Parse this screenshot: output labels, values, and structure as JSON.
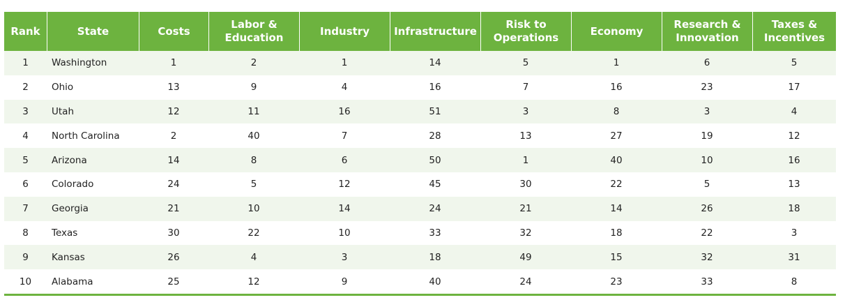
{
  "table": {
    "headers": [
      [
        "Rank"
      ],
      [
        "State"
      ],
      [
        "Costs"
      ],
      [
        "Labor &",
        "Education"
      ],
      [
        "Industry"
      ],
      [
        "Infrastructure"
      ],
      [
        "Risk to",
        "Operations"
      ],
      [
        "Economy"
      ],
      [
        "Research &",
        "Innovation"
      ],
      [
        "Taxes &",
        "Incentives"
      ]
    ],
    "rows": [
      [
        "1",
        "Washington",
        "1",
        "2",
        "1",
        "14",
        "5",
        "1",
        "6",
        "5"
      ],
      [
        "2",
        "Ohio",
        "13",
        "9",
        "4",
        "16",
        "7",
        "16",
        "23",
        "17"
      ],
      [
        "3",
        "Utah",
        "12",
        "11",
        "16",
        "51",
        "3",
        "8",
        "3",
        "4"
      ],
      [
        "4",
        "North Carolina",
        "2",
        "40",
        "7",
        "28",
        "13",
        "27",
        "19",
        "12"
      ],
      [
        "5",
        "Arizona",
        "14",
        "8",
        "6",
        "50",
        "1",
        "40",
        "10",
        "16"
      ],
      [
        "6",
        "Colorado",
        "24",
        "5",
        "12",
        "45",
        "30",
        "22",
        "5",
        "13"
      ],
      [
        "7",
        "Georgia",
        "21",
        "10",
        "14",
        "24",
        "21",
        "14",
        "26",
        "18"
      ],
      [
        "8",
        "Texas",
        "30",
        "22",
        "10",
        "33",
        "32",
        "18",
        "22",
        "3"
      ],
      [
        "9",
        "Kansas",
        "26",
        "4",
        "3",
        "18",
        "49",
        "15",
        "32",
        "31"
      ],
      [
        "10",
        "Alabama",
        "25",
        "12",
        "9",
        "40",
        "24",
        "23",
        "33",
        "8"
      ]
    ]
  },
  "colors": {
    "header_bg": "#6db33f",
    "header_text": "#ffffff",
    "row_stripe": "#f0f6ec",
    "row_plain": "#ffffff"
  }
}
